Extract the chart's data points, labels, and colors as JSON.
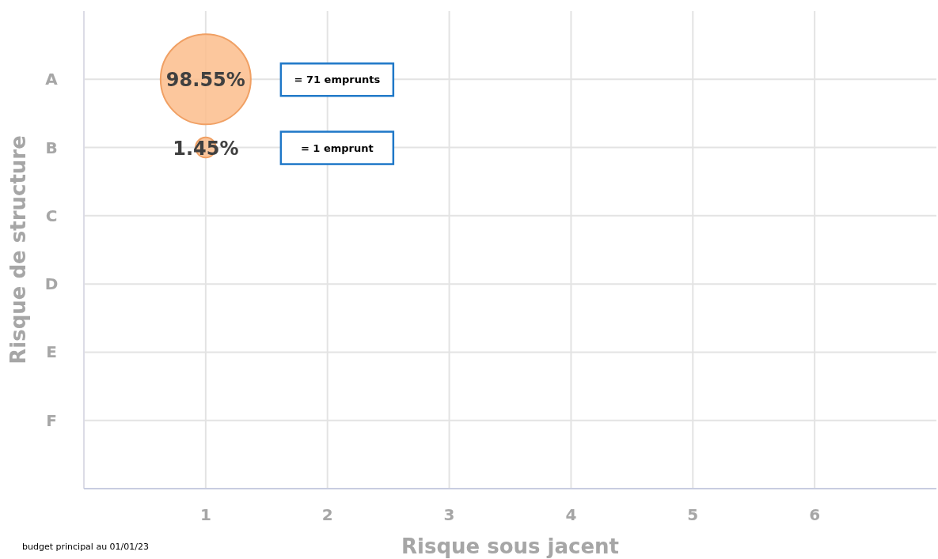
{
  "chart_data": {
    "type": "bubble",
    "orientation": "horizontal",
    "xlabel": "Risque sous jacent",
    "ylabel": "Risque de structure",
    "categories": [
      "A",
      "B",
      "C",
      "D",
      "E",
      "F",
      null
    ],
    "values": [
      1,
      1,
      null,
      null,
      null,
      null,
      null
    ],
    "sizes": [
      1,
      0.05,
      null,
      null,
      null,
      null,
      null
    ],
    "color": "#fbbd8c",
    "xlim": [
      0,
      7
    ],
    "xticks": [
      1,
      2,
      3,
      4,
      5,
      6
    ],
    "grid": true,
    "marker": "circle",
    "annotations": [
      "98.55%",
      "1.45%",
      "= 71 emprunts",
      "= 1 emprunt",
      "budget principal au 01/01/23"
    ]
  }
}
